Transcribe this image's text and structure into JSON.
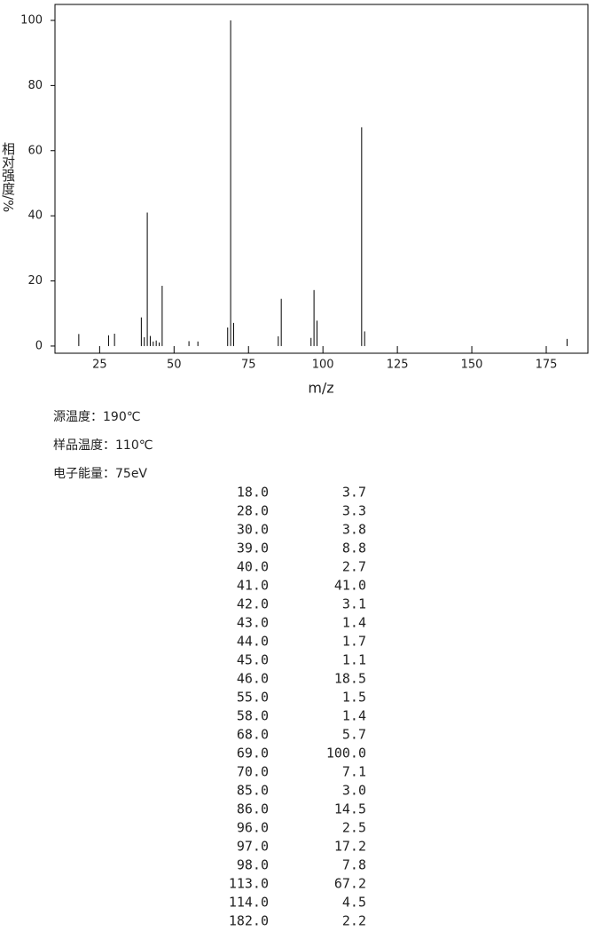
{
  "chart_data": {
    "type": "stick",
    "x_label": "m/z",
    "y_label": "相对强度/%",
    "x": [
      18,
      28,
      30,
      39,
      40,
      41,
      42,
      43,
      44,
      45,
      46,
      55,
      58,
      68,
      69,
      70,
      85,
      86,
      96,
      97,
      98,
      113,
      114,
      182
    ],
    "values": [
      3.7,
      3.3,
      3.8,
      8.8,
      2.7,
      41.0,
      3.1,
      1.4,
      1.7,
      1.1,
      18.5,
      1.5,
      1.4,
      5.7,
      100.0,
      7.1,
      3.0,
      14.5,
      2.5,
      17.2,
      7.8,
      67.2,
      4.5,
      2.2
    ],
    "color": "#000000",
    "xlim": [
      10,
      189
    ],
    "ylim": [
      -2.2,
      104.9
    ],
    "xticks": [
      25,
      50,
      75,
      100,
      125,
      150,
      175
    ],
    "yticks": [
      0,
      20,
      40,
      60,
      80,
      100
    ]
  },
  "info": [
    "源温度：190℃",
    "样品温度：110℃",
    "电子能量：75eV"
  ],
  "table": {
    "rows": [
      [
        "18.0",
        "3.7"
      ],
      [
        "28.0",
        "3.3"
      ],
      [
        "30.0",
        "3.8"
      ],
      [
        "39.0",
        "8.8"
      ],
      [
        "40.0",
        "2.7"
      ],
      [
        "41.0",
        "41.0"
      ],
      [
        "42.0",
        "3.1"
      ],
      [
        "43.0",
        "1.4"
      ],
      [
        "44.0",
        "1.7"
      ],
      [
        "45.0",
        "1.1"
      ],
      [
        "46.0",
        "18.5"
      ],
      [
        "55.0",
        "1.5"
      ],
      [
        "58.0",
        "1.4"
      ],
      [
        "68.0",
        "5.7"
      ],
      [
        "69.0",
        "100.0"
      ],
      [
        "70.0",
        "7.1"
      ],
      [
        "85.0",
        "3.0"
      ],
      [
        "86.0",
        "14.5"
      ],
      [
        "96.0",
        "2.5"
      ],
      [
        "97.0",
        "17.2"
      ],
      [
        "98.0",
        "7.8"
      ],
      [
        "113.0",
        "67.2"
      ],
      [
        "114.0",
        "4.5"
      ],
      [
        "182.0",
        "2.2"
      ]
    ]
  }
}
